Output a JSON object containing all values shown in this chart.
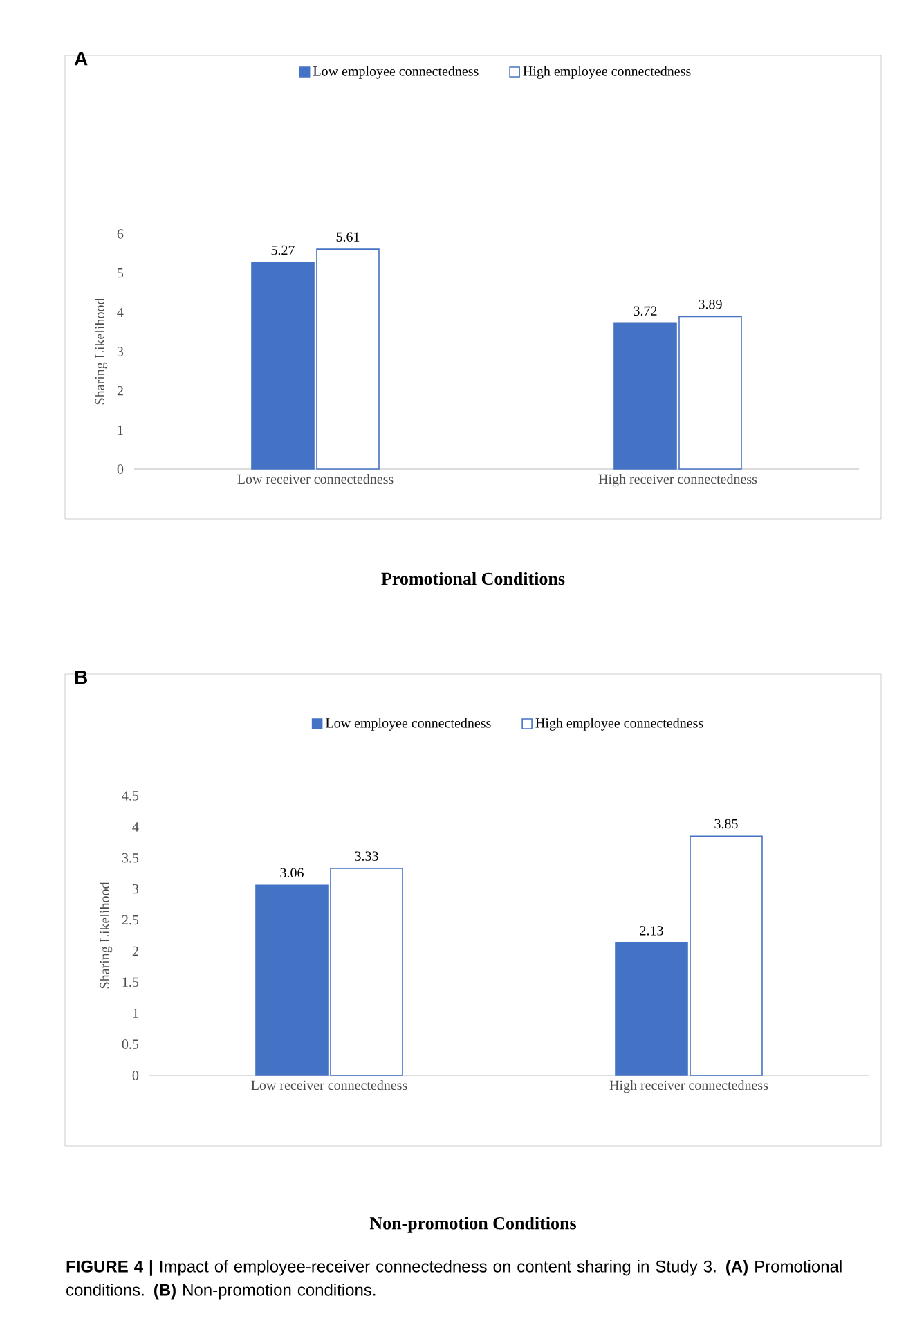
{
  "chart_data": [
    {
      "type": "bar",
      "title": "Promotional Conditions",
      "ylabel": "Sharing Likelihood",
      "annotations": [
        "A"
      ],
      "categories": [
        "Low receiver connectedness",
        "High receiver connectedness"
      ],
      "series": [
        {
          "name": "Low employee connectedness",
          "color": "#4472c4",
          "values": [
            5.27,
            3.72
          ]
        },
        {
          "name": "High employee connectedness",
          "color": "#ffffff",
          "values": [
            5.61,
            3.89
          ]
        }
      ],
      "ylim": [
        0,
        6
      ],
      "yticks": [
        0,
        1,
        2,
        3,
        4,
        5,
        6
      ],
      "data_labels": true,
      "legend": "top",
      "grid": false
    },
    {
      "type": "bar",
      "title": "Non-promotion Conditions",
      "ylabel": "Sharing Likelihood",
      "annotations": [
        "B",
        "**FIGURE 4 |** Impact of employee-receiver connectedness on content sharing in Study 3. **(A)** Promotional conditions. **(B)** Non-promotion conditions."
      ],
      "categories": [
        "Low receiver connectedness",
        "High receiver connectedness"
      ],
      "series": [
        {
          "name": "Low employee connectedness",
          "color": "#4472c4",
          "values": [
            3.06,
            2.13
          ]
        },
        {
          "name": "High employee connectedness",
          "color": "#ffffff",
          "values": [
            3.33,
            3.85
          ]
        }
      ],
      "ylim": [
        0,
        4.5
      ],
      "yticks": [
        0,
        0.5,
        1,
        1.5,
        2,
        2.5,
        3,
        3.5,
        4,
        4.5
      ],
      "data_labels": true,
      "legend": "top",
      "grid": false
    }
  ]
}
